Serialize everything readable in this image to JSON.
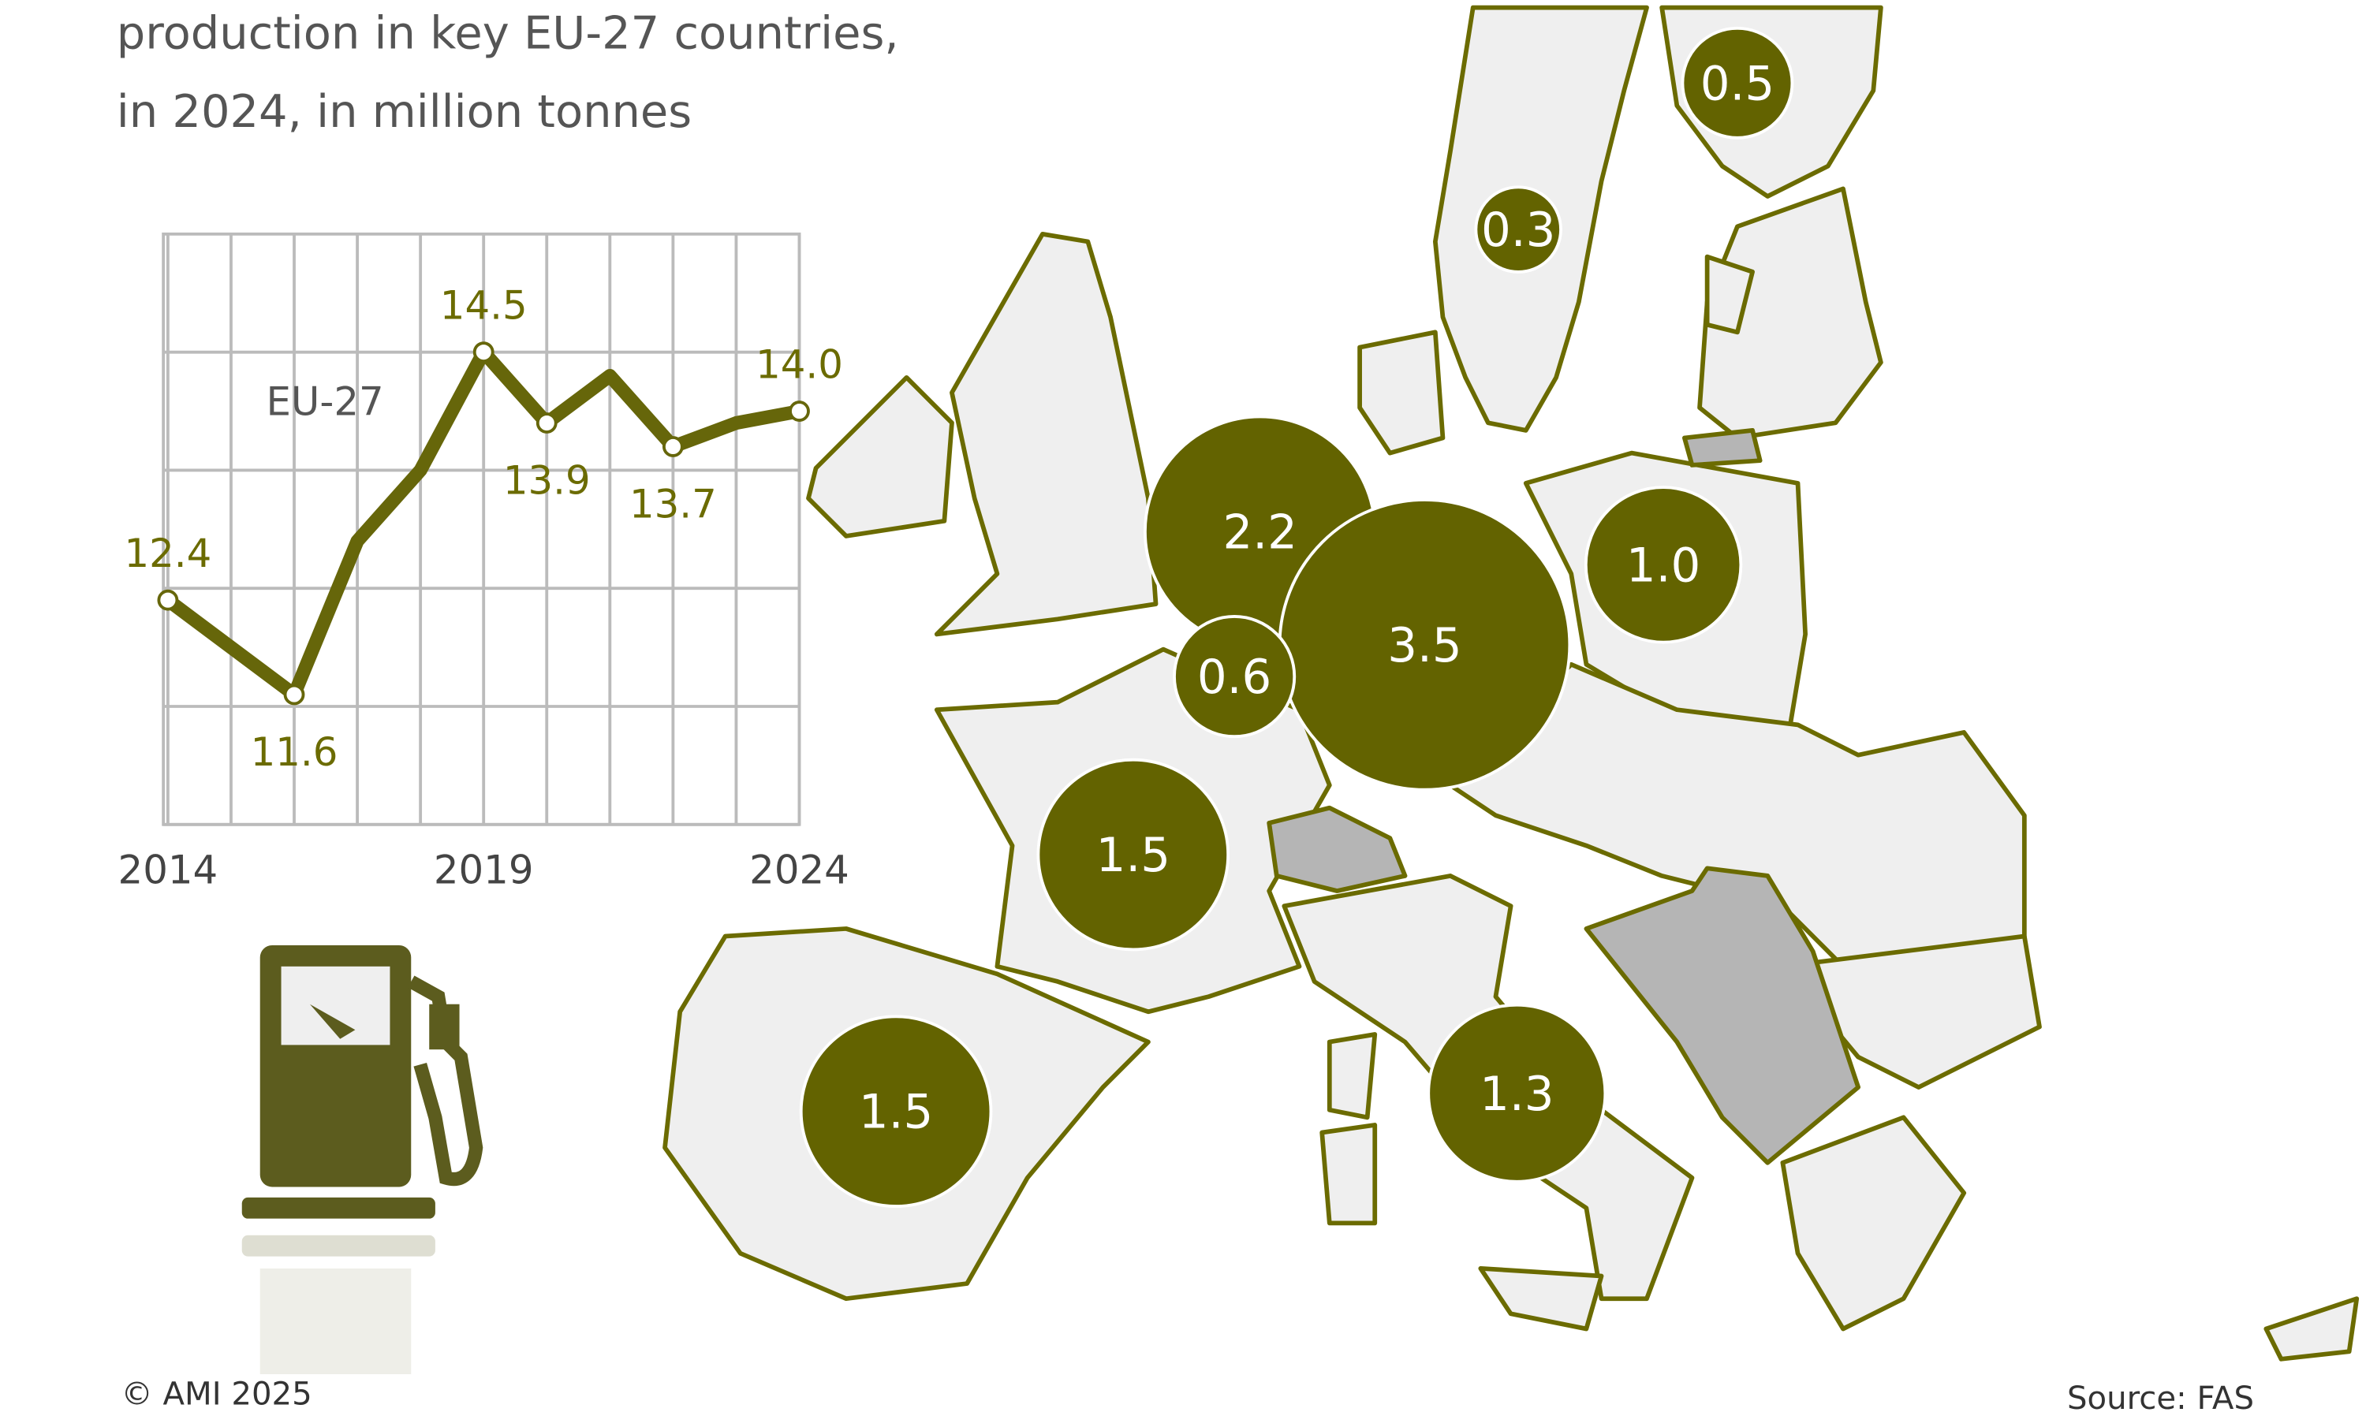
{
  "chart_data": [
    {
      "type": "text",
      "title_lines": [
        "production in key EU-27 countries,",
        "in 2024, in million tonnes"
      ],
      "credit": "© AMI 2025",
      "source": "Source: FAS"
    },
    {
      "type": "line",
      "x": [
        2014,
        2015,
        2016,
        2017,
        2018,
        2019,
        2020,
        2021,
        2022,
        2023,
        2024
      ],
      "xlim": [
        2014,
        2024
      ],
      "xticks": [
        2014,
        2019,
        2024
      ],
      "ylim": [
        10.5,
        15.5
      ],
      "grid": true,
      "series": [
        {
          "name": "EU-27",
          "color": "#66660a",
          "values": [
            12.4,
            12.0,
            11.6,
            12.9,
            13.5,
            14.5,
            13.9,
            14.3,
            13.7,
            13.9,
            14.0
          ],
          "value_labels": [
            "12.4",
            null,
            "11.6",
            null,
            null,
            "14.5",
            "13.9",
            null,
            "13.7",
            null,
            "14.0"
          ]
        }
      ]
    },
    {
      "type": "bubble",
      "color": "#636300",
      "values": [
        0.5,
        0.3,
        2.2,
        3.5,
        1.0,
        0.6,
        1.5,
        1.5,
        1.3
      ],
      "value_labels": [
        "0.5",
        "0.3",
        "2.2",
        "3.5",
        "1.0",
        "0.6",
        "1.5",
        "1.5",
        "1.3"
      ]
    }
  ]
}
